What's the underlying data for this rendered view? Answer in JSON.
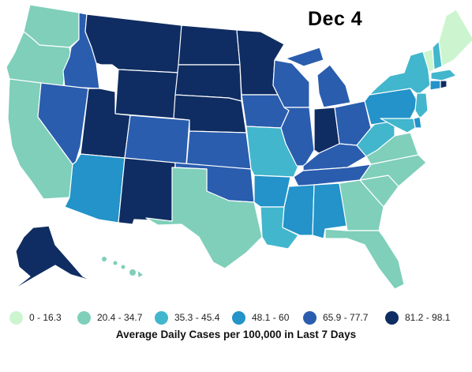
{
  "map": {
    "date": "Dec 4",
    "legend_title": "Average Daily Cases per 100,000 in Last 7 Days",
    "legend": [
      {
        "id": "b0",
        "label": "0 - 16.3",
        "color": "#ccf5cf"
      },
      {
        "id": "b1",
        "label": "20.4 - 34.7",
        "color": "#7fcfba"
      },
      {
        "id": "b2",
        "label": "35.3 - 45.4",
        "color": "#42b6cc"
      },
      {
        "id": "b3",
        "label": "48.1 - 60",
        "color": "#2393c9"
      },
      {
        "id": "b4",
        "label": "65.9 - 77.7",
        "color": "#2a5dae"
      },
      {
        "id": "b5",
        "label": "81.2 - 98.1",
        "color": "#0f2d62"
      }
    ],
    "states": {
      "WA": "b1",
      "OR": "b1",
      "CA": "b1",
      "ID": "b4",
      "NV": "b4",
      "MT": "b5",
      "WY": "b5",
      "UT": "b5",
      "AZ": "b3",
      "CO": "b4",
      "NM": "b5",
      "ND": "b5",
      "SD": "b5",
      "NE": "b5",
      "KS": "b4",
      "OK": "b4",
      "TX": "b1",
      "MN": "b5",
      "IA": "b4",
      "MO": "b2",
      "AR": "b3",
      "LA": "b2",
      "WI": "b4",
      "IL": "b4",
      "MI": "b4",
      "IN": "b5",
      "OH": "b4",
      "KY": "b4",
      "TN": "b4",
      "MS": "b3",
      "AL": "b3",
      "GA": "b1",
      "FL": "b1",
      "SC": "b1",
      "NC": "b1",
      "VA": "b1",
      "WV": "b2",
      "PA": "b3",
      "NY": "b2",
      "VT": "b0",
      "NH": "b2",
      "ME": "b0",
      "MA": "b2",
      "CT": "b3",
      "RI": "b5",
      "NJ": "b2",
      "DE": "b3",
      "MD": "b2",
      "AK": "b5",
      "HI": "b1"
    }
  }
}
